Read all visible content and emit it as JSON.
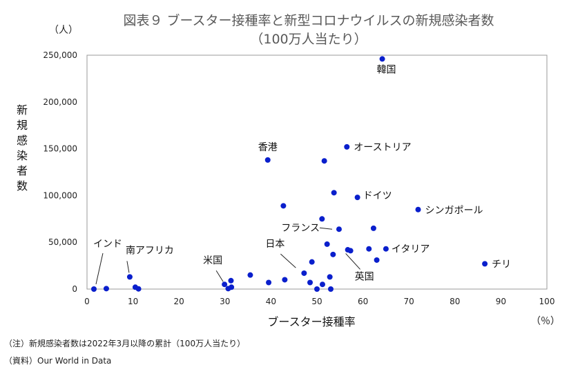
{
  "chart_data": {
    "type": "scatter",
    "title": "図表９ ブースター接種率と新型コロナウイルスの新規感染者数",
    "subtitle": "（100万人当たり）",
    "xlabel": "ブースター接種率",
    "x_unit": "（％）",
    "ylabel": "新規感染者数",
    "y_unit": "（人）",
    "xlim": [
      0,
      100
    ],
    "ylim": [
      0,
      250000
    ],
    "x_ticks": [
      "0",
      "10",
      "20",
      "30",
      "40",
      "50",
      "60",
      "70",
      "80",
      "90",
      "100"
    ],
    "y_ticks": [
      "0",
      "50,000",
      "100,000",
      "150,000",
      "200,000",
      "250,000"
    ],
    "grid": false,
    "marker_color": "#0A1FCC",
    "points": [
      {
        "x": 1.5,
        "y": 0
      },
      {
        "x": 4.2,
        "y": 500
      },
      {
        "x": 9.3,
        "y": 13000
      },
      {
        "x": 10.5,
        "y": 2000
      },
      {
        "x": 11.2,
        "y": 200
      },
      {
        "x": 29.9,
        "y": 5000
      },
      {
        "x": 30.7,
        "y": 500
      },
      {
        "x": 31.3,
        "y": 9000
      },
      {
        "x": 31.4,
        "y": 2000
      },
      {
        "x": 35.5,
        "y": 15000
      },
      {
        "x": 39.3,
        "y": 138000
      },
      {
        "x": 39.5,
        "y": 7000
      },
      {
        "x": 42.7,
        "y": 89000
      },
      {
        "x": 43.0,
        "y": 10000
      },
      {
        "x": 47.2,
        "y": 17000
      },
      {
        "x": 48.5,
        "y": 7000
      },
      {
        "x": 48.9,
        "y": 29000
      },
      {
        "x": 50.0,
        "y": 0
      },
      {
        "x": 51.1,
        "y": 75000
      },
      {
        "x": 51.2,
        "y": 5000
      },
      {
        "x": 51.6,
        "y": 137000
      },
      {
        "x": 52.2,
        "y": 48000
      },
      {
        "x": 52.8,
        "y": 13000
      },
      {
        "x": 53.0,
        "y": 0
      },
      {
        "x": 53.5,
        "y": 37000
      },
      {
        "x": 53.7,
        "y": 103000
      },
      {
        "x": 54.8,
        "y": 64000
      },
      {
        "x": 56.5,
        "y": 152000
      },
      {
        "x": 56.7,
        "y": 42000
      },
      {
        "x": 57.3,
        "y": 41000
      },
      {
        "x": 58.8,
        "y": 98000
      },
      {
        "x": 61.3,
        "y": 43000
      },
      {
        "x": 62.3,
        "y": 65000
      },
      {
        "x": 63.0,
        "y": 31000
      },
      {
        "x": 64.2,
        "y": 246000
      },
      {
        "x": 65.0,
        "y": 43000
      },
      {
        "x": 72.0,
        "y": 85000
      },
      {
        "x": 86.5,
        "y": 27000
      }
    ],
    "annotations": [
      {
        "label": "韓国",
        "x": 64.2,
        "y": 246000
      },
      {
        "label": "オーストリア",
        "x": 56.5,
        "y": 152000
      },
      {
        "label": "香港",
        "x": 39.3,
        "y": 138000
      },
      {
        "label": "ドイツ",
        "x": 58.8,
        "y": 98000
      },
      {
        "label": "シンガポール",
        "x": 72.0,
        "y": 85000
      },
      {
        "label": "フランス",
        "x": 54.8,
        "y": 64000
      },
      {
        "label": "イタリア",
        "x": 65.0,
        "y": 43000
      },
      {
        "label": "日本",
        "x": 46.0,
        "y": 22000
      },
      {
        "label": "英国",
        "x": 57.3,
        "y": 41000
      },
      {
        "label": "チリ",
        "x": 86.5,
        "y": 27000
      },
      {
        "label": "米国",
        "x": 29.9,
        "y": 5000
      },
      {
        "label": "インド",
        "x": 1.5,
        "y": 0
      },
      {
        "label": "南アフリカ",
        "x": 9.3,
        "y": 13000
      }
    ]
  },
  "notes": {
    "note1": "（注）新規感染者数は2022年3月以降の累計（100万人当たり）",
    "note2": "（資料）Our World in Data"
  }
}
